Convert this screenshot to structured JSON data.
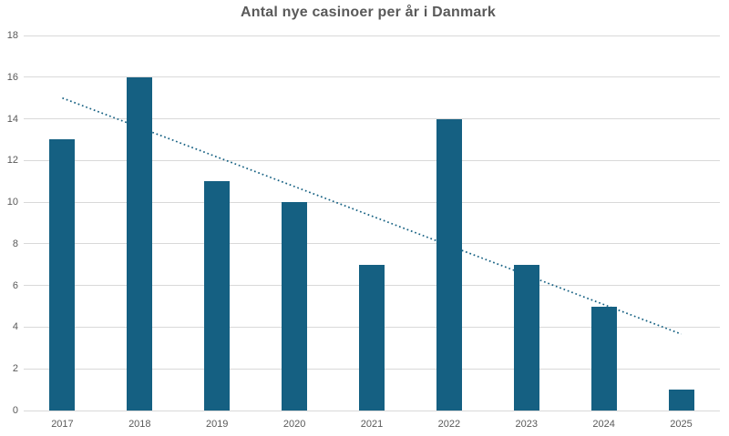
{
  "title": "Antal nye casinoer per år i Danmark",
  "colors": {
    "bar": "#156082",
    "trendline": "#156082",
    "gridline": "#d9d9d9",
    "axis_line": "#d9d9d9",
    "title_text": "#595959",
    "tick_text": "#595959",
    "background": "#ffffff"
  },
  "chart_data": {
    "type": "bar",
    "title": "Antal nye casinoer per år i Danmark",
    "categories": [
      "2017",
      "2018",
      "2019",
      "2020",
      "2021",
      "2022",
      "2023",
      "2024",
      "2025"
    ],
    "values": [
      13,
      16,
      11,
      10,
      7,
      14,
      7,
      5,
      1
    ],
    "xlabel": "",
    "ylabel": "",
    "ylim": [
      0,
      18
    ],
    "yticks": [
      0,
      2,
      4,
      6,
      8,
      10,
      12,
      14,
      16,
      18
    ],
    "grid": "horizontal",
    "legend": "none",
    "trendline": {
      "type": "linear",
      "style": "dotted",
      "start_value": 15.0,
      "end_value": 3.67
    }
  }
}
